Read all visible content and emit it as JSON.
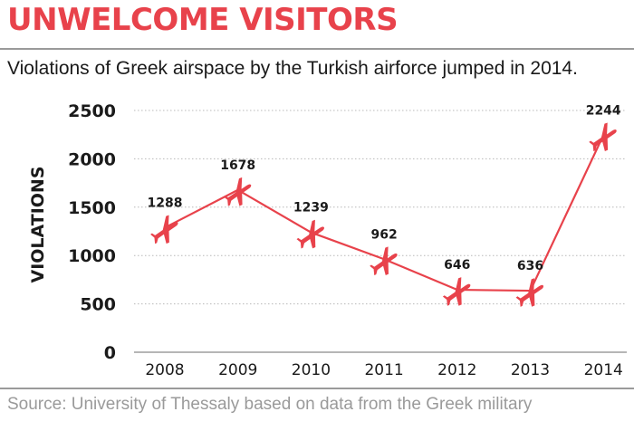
{
  "header": {
    "title": "UNWELCOME VISITORS",
    "subtitle": "Violations of Greek airspace by the Turkish airforce jumped in 2014."
  },
  "footer": {
    "source": "Source: University of Thessaly based on data from the Greek military"
  },
  "colors": {
    "accent": "#e8424b",
    "grid": "#b8b8b8",
    "text": "#1a1a1a",
    "muted": "#9a9a9a"
  },
  "chart_data": {
    "type": "line",
    "title": "UNWELCOME VISITORS",
    "subtitle": "Violations of Greek airspace by the Turkish airforce jumped in 2014.",
    "xlabel": "",
    "ylabel": "VIOLATIONS",
    "categories": [
      "2008",
      "2009",
      "2010",
      "2011",
      "2012",
      "2013",
      "2014"
    ],
    "series": [
      {
        "values": [
          1288,
          1678,
          1239,
          962,
          646,
          636,
          2244
        ],
        "marker": "airplane-icon"
      }
    ],
    "data_labels": [
      "1288",
      "1678",
      "1239",
      "962",
      "646",
      "636",
      "2244"
    ],
    "ylim": [
      0,
      2500
    ],
    "yticks": [
      0,
      500,
      1000,
      1500,
      2000,
      2500
    ],
    "ytick_labels": [
      "0",
      "500",
      "1000",
      "1500",
      "2000",
      "2500"
    ],
    "grid": "horizontal-dotted",
    "legend": "none"
  }
}
